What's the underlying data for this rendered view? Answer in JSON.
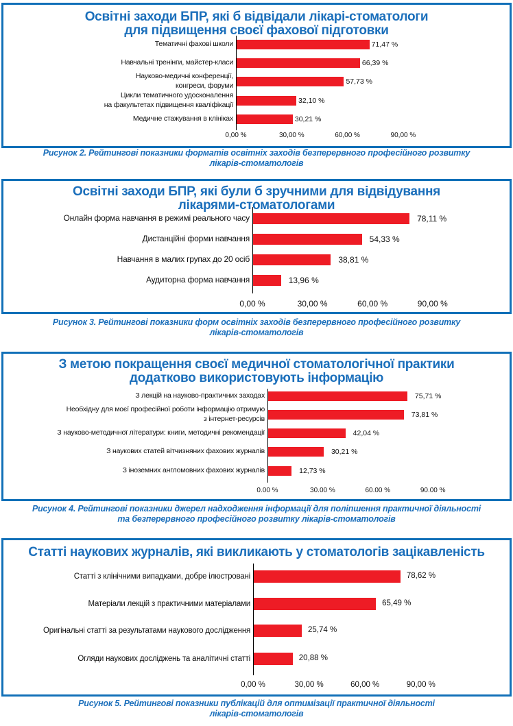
{
  "chart_data": [
    {
      "type": "bar",
      "orientation": "horizontal",
      "title": [
        "Освітні заходи БПР, які б відвідали лікарі-стоматологи",
        "для підвищення своєї фахової підготовки"
      ],
      "categories": [
        [
          "Тематичні фахові школи"
        ],
        [
          "Навчальні тренінги, майстер-класи"
        ],
        [
          "Науково-медичні конференції,",
          "конгреси, форуми"
        ],
        [
          "Цикли тематичного удосконалення",
          "на факультетах підвищення кваліфікації"
        ],
        [
          "Медичне стажування в клініках"
        ]
      ],
      "values": [
        71.47,
        66.39,
        57.73,
        32.1,
        30.21
      ],
      "value_labels": [
        "71,47 %",
        "66,39 %",
        "57,73 %",
        "32,10 %",
        "30,21 %"
      ],
      "xticks": [
        "0,00 %",
        "30,00 %",
        "60,00 %",
        "90,00 %"
      ],
      "xtick_values": [
        0,
        30,
        60,
        90
      ],
      "xlim": [
        0,
        90
      ],
      "bar_color": "#ee1c25",
      "caption": [
        "Рисунок 2. Рейтингові показники форматів освітніх заходів безперервного професійного розвитку",
        "лікарів-стоматологів"
      ]
    },
    {
      "type": "bar",
      "orientation": "horizontal",
      "title": [
        "Освітні заходи БПР, які були б зручними для відвідування",
        "лікарями-стоматологами"
      ],
      "categories": [
        [
          "Онлайн форма навчання в режимі реального часу"
        ],
        [
          "Дистанційні форми навчання"
        ],
        [
          "Навчання в малих групах до 20 осіб"
        ],
        [
          "Аудиторна форма навчання"
        ]
      ],
      "values": [
        78.11,
        54.33,
        38.81,
        13.96
      ],
      "value_labels": [
        "78,11 %",
        "54,33 %",
        "38,81 %",
        "13,96 %"
      ],
      "xticks": [
        "0,00 %",
        "30,00 %",
        "60,00 %",
        "90,00 %"
      ],
      "xtick_values": [
        0,
        30,
        60,
        90
      ],
      "xlim": [
        0,
        90
      ],
      "bar_color": "#ee1c25",
      "caption": [
        "Рисунок 3. Рейтингові показники форм освітніх заходів безперервного професійного розвитку",
        "лікарів-стоматологів"
      ]
    },
    {
      "type": "bar",
      "orientation": "horizontal",
      "title": [
        "З метою покращення своєї медичної стоматологічної практики",
        "додатково використовують інформацію"
      ],
      "categories": [
        [
          "З лекцій на науково-практичних заходах"
        ],
        [
          "Необхідну для моєї професійної роботи інформацію отримую",
          "з інтернет-ресурсів"
        ],
        [
          "З науково-методичної літератури: книги, методичні рекомендації"
        ],
        [
          "З наукових статей вітчизняних фахових журналів"
        ],
        [
          "З іноземних англомовних фахових журналів"
        ]
      ],
      "values": [
        75.71,
        73.81,
        42.04,
        30.21,
        12.73
      ],
      "value_labels": [
        "75,71 %",
        "73,81 %",
        "42,04 %",
        "30,21 %",
        "12,73 %"
      ],
      "xticks": [
        "0.00 %",
        "30.00 %",
        "60.00 %",
        "90.00 %"
      ],
      "xtick_values": [
        0,
        30,
        60,
        90
      ],
      "xlim": [
        0,
        90
      ],
      "bar_color": "#ee1c25",
      "caption": [
        "Рисунок 4. Рейтингові показники джерел надходження інформації для поліпшення практичної діяльності",
        "та безперервного професійного розвитку лікарів-стоматологів"
      ]
    },
    {
      "type": "bar",
      "orientation": "horizontal",
      "title": [
        "Статті наукових журналів, які викликають у стоматологів зацікавленість"
      ],
      "categories": [
        [
          "Статті з клінічними випадками, добре ілюстровані"
        ],
        [
          "Матеріали лекцій з практичними матеріалами"
        ],
        [
          "Оригінальні статті за результатами наукового дослідження"
        ],
        [
          "Огляди наукових досліджень та аналітичні статті"
        ]
      ],
      "values": [
        78.62,
        65.49,
        25.74,
        20.88
      ],
      "value_labels": [
        "78,62 %",
        "65,49 %",
        "25,74 %",
        "20,88 %"
      ],
      "xticks": [
        "0,00 %",
        "30,00 %",
        "60,00 %",
        "90,00 %"
      ],
      "xtick_values": [
        0,
        30,
        60,
        90
      ],
      "xlim": [
        0,
        90
      ],
      "bar_color": "#ee1c25",
      "caption": [
        "Рисунок 5. Рейтингові показники публікацій для оптимізації практичної діяльності",
        "лікарів-стоматологів"
      ]
    }
  ]
}
